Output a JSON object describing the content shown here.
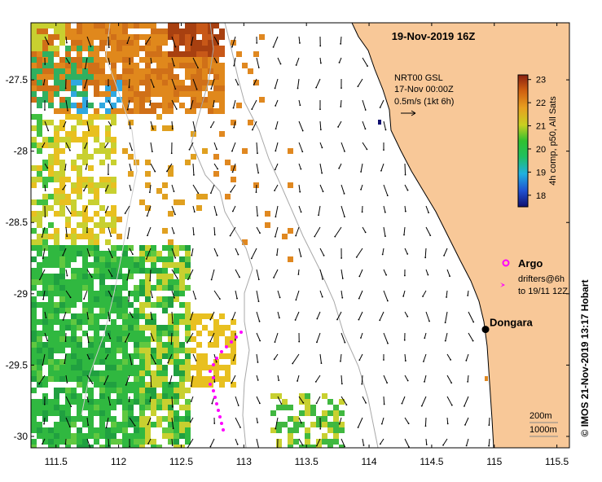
{
  "map": {
    "title": "19-Nov-2019 16Z",
    "lon_ticks": [
      "111.5",
      "112",
      "112.5",
      "113",
      "113.5",
      "114",
      "114.5",
      "115",
      "115.5"
    ],
    "lat_ticks": [
      "-27.5",
      "-28",
      "-28.5",
      "-29",
      "-29.5",
      "-30"
    ],
    "lon_range": [
      111.3,
      115.6
    ],
    "lat_range": [
      -30.08,
      -27.1
    ],
    "colors": {
      "land": "#f8c898",
      "isobath": "#a8a8a8",
      "coast": "#000000",
      "drifter": "#ff00ff"
    }
  },
  "current_info": {
    "line1": "NRT00 GSL",
    "line2": "17-Nov 00:00Z",
    "line3": "0.5m/s (1kt 6h)"
  },
  "colorbar": {
    "label": "4h comp, p50, All Sats",
    "min": 17.5,
    "max": 23.2,
    "ticks": [
      "18",
      "19",
      "20",
      "21",
      "22",
      "23"
    ]
  },
  "legend": {
    "argo_label": "Argo",
    "drifters_line1": "drifters@6h",
    "drifters_line2": "to 19/11 12Z"
  },
  "places": [
    {
      "name": "Dongara",
      "lon": 114.93,
      "lat": -29.25
    }
  ],
  "bathy_legend": {
    "line1": "200m",
    "line2": "1000m"
  },
  "credit": "© IMOS 21-Nov-2019 13:17 Hobart"
}
